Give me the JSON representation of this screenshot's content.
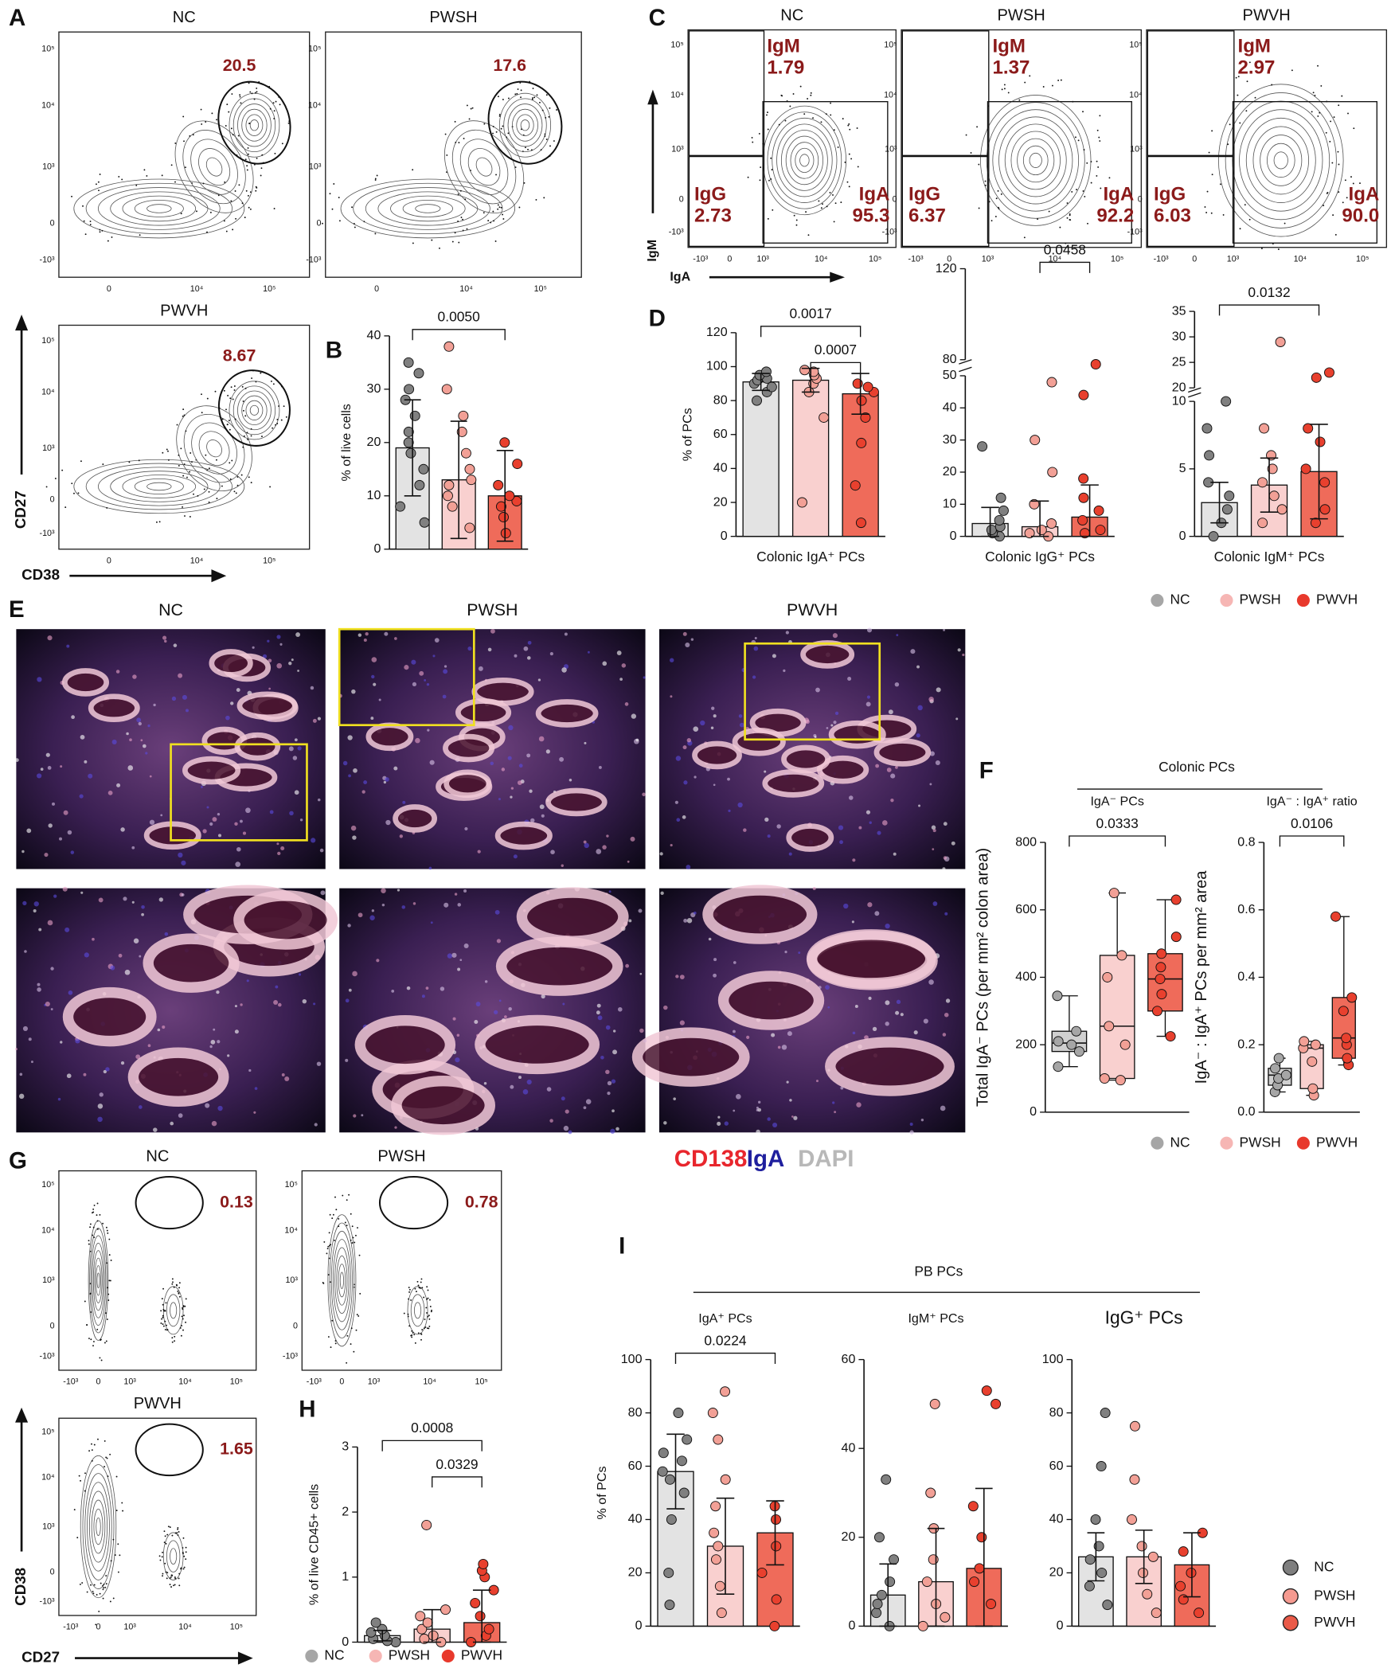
{
  "panel_letters": [
    "A",
    "B",
    "C",
    "D",
    "E",
    "F",
    "G",
    "H",
    "I"
  ],
  "flow_A": {
    "axis_x": "CD38",
    "axis_y": "CD27",
    "ticks_x": [
      "0",
      "10⁴",
      "10⁵"
    ],
    "ticks_y": [
      "-10³",
      "0",
      "10³",
      "10⁴",
      "10⁵"
    ],
    "plots": [
      {
        "title": "NC",
        "gate": 20.5
      },
      {
        "title": "PWSH",
        "gate": 17.6
      },
      {
        "title": "PWVH",
        "gate": 8.67
      }
    ]
  },
  "flow_C": {
    "axis_x": "IgA",
    "axis_y": "IgM",
    "ticks_x": [
      "-10³",
      "0",
      "10³",
      "10⁴",
      "10⁵"
    ],
    "ticks_y": [
      "-10³",
      "0",
      "10³",
      "10⁴",
      "10⁵"
    ],
    "plots": [
      {
        "title": "NC",
        "gates": [
          {
            "name": "IgM",
            "value": 1.79
          },
          {
            "name": "IgG",
            "value": 2.73
          },
          {
            "name": "IgA",
            "value": 95.3
          }
        ]
      },
      {
        "title": "PWSH",
        "gates": [
          {
            "name": "IgM",
            "value": 1.37
          },
          {
            "name": "IgG",
            "value": 6.37
          },
          {
            "name": "IgA",
            "value": 92.2
          }
        ]
      },
      {
        "title": "PWVH",
        "gates": [
          {
            "name": "IgM",
            "value": 2.97
          },
          {
            "name": "IgG",
            "value": 6.03
          },
          {
            "name": "IgA",
            "value": {
              "value": 90,
              "label": "90.0"
            }
          }
        ]
      }
    ]
  },
  "flow_G": {
    "axis_x": "CD27",
    "axis_y": "CD38",
    "ticks_x": [
      "-10³",
      "0",
      "10³",
      "10⁴",
      "10⁵"
    ],
    "ticks_y": [
      "-10³",
      "0",
      "10³",
      "10⁴",
      "10⁵"
    ],
    "plots": [
      {
        "title": "NC",
        "gate": 0.13
      },
      {
        "title": "PWSH",
        "gate": 0.78
      },
      {
        "title": "PWVH",
        "gate": 1.65
      }
    ]
  },
  "images_E": {
    "titles": [
      "NC",
      "PWSH",
      "PWVH"
    ],
    "stains": [
      {
        "text": "CD138",
        "color": "#e8262d"
      },
      {
        "text": "IgA",
        "color": "#1f1f9e"
      },
      {
        "text": "DAPI",
        "color": "#b8b8b8"
      }
    ]
  },
  "group_titles": [
    "Colonic PCs",
    "PB PCs"
  ],
  "legends": [
    [
      {
        "name": "NC",
        "color": "#a6a6a6"
      },
      {
        "name": "PWSH",
        "color": "#f6b6b4"
      },
      {
        "name": "PWVH",
        "color": "#e8392c"
      }
    ],
    [
      {
        "name": "NC",
        "color": "#a6a6a6"
      },
      {
        "name": "PWSH",
        "color": "#f6b6b4"
      },
      {
        "name": "PWVH",
        "color": "#e8392c"
      }
    ],
    [
      {
        "name": "NC",
        "color": "#a6a6a6"
      },
      {
        "name": "PWSH",
        "color": "#f6b6b4"
      },
      {
        "name": "PWVH",
        "color": "#e8392c"
      }
    ],
    [
      {
        "name": "NC",
        "color": "#7f7f7f"
      },
      {
        "name": "PWSH",
        "color": "#f59a90"
      },
      {
        "name": "PWVH",
        "color": "#ea5a48"
      }
    ]
  ],
  "chart_data": [
    {
      "type": "bar",
      "ylabel": "% of live cells",
      "ylim": [
        0,
        40
      ],
      "yticks": [
        0,
        10,
        20,
        30,
        40
      ],
      "series": [
        {
          "color": "#e3e3e3",
          "point_color": "#808080",
          "value": 19,
          "error": 9,
          "points": [
            5,
            8,
            12,
            15,
            18,
            20,
            22,
            25,
            28,
            30,
            33,
            35
          ]
        },
        {
          "color": "#f9d0cf",
          "point_color": "#f2a096",
          "value": 13,
          "error": 11,
          "points": [
            4,
            8,
            10,
            12,
            13,
            15,
            18,
            22,
            25,
            30,
            38
          ]
        },
        {
          "color": "#ef6b5a",
          "point_color": "#e8402e",
          "value": 10,
          "error": 8.5,
          "points": [
            3,
            6,
            8,
            9,
            10,
            12,
            16,
            20
          ]
        }
      ],
      "comparisons": [
        {
          "label": "0.0050",
          "between": [
            0,
            2
          ]
        }
      ]
    },
    {
      "type": "bar",
      "ylabel": "% of PCs",
      "xlabel": "Colonic IgA⁺ PCs",
      "ylim": [
        0,
        120
      ],
      "yticks": [
        0,
        20,
        40,
        60,
        80,
        100,
        120
      ],
      "series": [
        {
          "color": "#e3e3e3",
          "point_color": "#808080",
          "value": 91,
          "error": 5,
          "points": [
            80,
            85,
            88,
            90,
            92,
            93,
            95,
            97
          ]
        },
        {
          "color": "#f9d0cf",
          "point_color": "#f2a096",
          "value": 92,
          "error": 7,
          "points": [
            20,
            70,
            85,
            90,
            93,
            95,
            97,
            98
          ]
        },
        {
          "color": "#ef6b5a",
          "point_color": "#e8402e",
          "value": 84,
          "error": 12,
          "points": [
            8,
            30,
            55,
            70,
            80,
            85,
            88,
            90
          ]
        }
      ],
      "comparisons": [
        {
          "label": "0.0017",
          "between": [
            0,
            2
          ]
        },
        {
          "label": "0.0007",
          "between": [
            1,
            2
          ]
        }
      ]
    },
    {
      "type": "bar",
      "xlabel": "Colonic IgG⁺ PCs",
      "ylim": [
        0,
        120
      ],
      "ybreak": [
        50,
        80
      ],
      "yticks": [
        0,
        10,
        20,
        30,
        40,
        50,
        80,
        120
      ],
      "series": [
        {
          "color": "#e3e3e3",
          "point_color": "#808080",
          "value": 4,
          "error": 5,
          "points": [
            0,
            1,
            2,
            3,
            5,
            8,
            12,
            28
          ]
        },
        {
          "color": "#f9d0cf",
          "point_color": "#f2a096",
          "value": 3,
          "error": 8,
          "points": [
            0,
            1,
            2,
            4,
            10,
            20,
            30,
            48
          ]
        },
        {
          "color": "#ef6b5a",
          "point_color": "#e8402e",
          "value": 6,
          "error": 10,
          "points": [
            1,
            2,
            5,
            8,
            12,
            18,
            44,
            78
          ]
        }
      ],
      "comparisons": [
        {
          "label": "0.0458",
          "between": [
            1,
            2
          ]
        }
      ]
    },
    {
      "type": "bar",
      "xlabel": "Colonic IgM⁺ PCs",
      "ylim": [
        0,
        35
      ],
      "ybreak": [
        10,
        20
      ],
      "yticks": [
        0,
        5,
        10,
        20,
        25,
        30,
        35
      ],
      "series": [
        {
          "color": "#e3e3e3",
          "point_color": "#808080",
          "value": 2.5,
          "error": 1.5,
          "points": [
            0,
            1,
            2,
            3,
            4,
            6,
            8,
            10
          ]
        },
        {
          "color": "#f9d0cf",
          "point_color": "#f2a096",
          "value": 3.8,
          "error": 2,
          "points": [
            1,
            2,
            3,
            4,
            5,
            6,
            8,
            29
          ]
        },
        {
          "color": "#ef6b5a",
          "point_color": "#e8402e",
          "value": 4.8,
          "error": 3.5,
          "points": [
            1,
            2,
            4,
            5,
            7,
            8,
            22,
            23
          ]
        }
      ],
      "comparisons": [
        {
          "label": "0.0132",
          "between": [
            0,
            2
          ]
        }
      ]
    },
    {
      "type": "box",
      "title": "IgA⁻ PCs",
      "ylabel": "Total IgA⁻ PCs (per mm² colon area)",
      "ylim": [
        0,
        800
      ],
      "yticks": [
        0,
        200,
        400,
        600,
        800
      ],
      "series": [
        {
          "color": "#d0d0d0",
          "point_color": "#a6a6a6",
          "min": 135,
          "q1": 180,
          "median": 205,
          "q3": 240,
          "max": 345,
          "points": [
            135,
            180,
            200,
            210,
            240,
            345
          ]
        },
        {
          "color": "#f9d0cf",
          "point_color": "#f2a096",
          "min": 95,
          "q1": 100,
          "median": 255,
          "q3": 465,
          "max": 650,
          "points": [
            95,
            100,
            200,
            255,
            400,
            465,
            650
          ]
        },
        {
          "color": "#ef6b5a",
          "point_color": "#e8402e",
          "min": 225,
          "q1": 300,
          "median": 395,
          "q3": 470,
          "max": 630,
          "points": [
            225,
            300,
            350,
            395,
            430,
            470,
            520,
            630
          ]
        }
      ],
      "comparisons": [
        {
          "label": "0.0333",
          "between": [
            0,
            2
          ]
        }
      ]
    },
    {
      "type": "box",
      "title": "IgA⁻ : IgA⁺ ratio",
      "ylabel": "IgA⁻ : IgA⁺ PCs per mm² area",
      "ylim": [
        0,
        0.8
      ],
      "yticks": [
        {
          "value": 0,
          "label": "0.0"
        },
        {
          "value": 0.2,
          "label": "0.2"
        },
        {
          "value": 0.4,
          "label": "0.4"
        },
        {
          "value": 0.6,
          "label": "0.6"
        },
        {
          "value": 0.8,
          "label": "0.8"
        }
      ],
      "series": [
        {
          "color": "#d0d0d0",
          "point_color": "#a6a6a6",
          "min": 0.06,
          "q1": 0.08,
          "median": 0.11,
          "q3": 0.13,
          "max": 0.16,
          "points": [
            0.06,
            0.08,
            0.1,
            0.11,
            0.13,
            0.16
          ]
        },
        {
          "color": "#f9d0cf",
          "point_color": "#f2a096",
          "min": 0.05,
          "q1": 0.07,
          "median": 0.19,
          "q3": 0.2,
          "max": 0.21,
          "points": [
            0.05,
            0.07,
            0.15,
            0.19,
            0.2,
            0.21
          ]
        },
        {
          "color": "#ef6b5a",
          "point_color": "#e8402e",
          "min": 0.14,
          "q1": 0.16,
          "median": 0.22,
          "q3": 0.34,
          "max": 0.58,
          "points": [
            0.14,
            0.16,
            0.2,
            0.22,
            0.3,
            0.34,
            0.58
          ]
        }
      ],
      "comparisons": [
        {
          "label": "0.0106",
          "between": [
            0,
            2
          ]
        }
      ]
    },
    {
      "type": "bar",
      "ylabel": "% of live CD45+ cells",
      "ylim": [
        0,
        3
      ],
      "yticks": [
        0,
        1,
        2,
        3
      ],
      "series": [
        {
          "color": "#e3e3e3",
          "point_color": "#808080",
          "value": 0.1,
          "error": 0.08,
          "points": [
            0,
            0.02,
            0.05,
            0.1,
            0.15,
            0.2,
            0.3
          ]
        },
        {
          "color": "#f9d0cf",
          "point_color": "#f2a096",
          "value": 0.2,
          "error": 0.3,
          "points": [
            0,
            0.05,
            0.1,
            0.2,
            0.3,
            0.4,
            0.5,
            1.8
          ]
        },
        {
          "color": "#ef6b5a",
          "point_color": "#e8402e",
          "value": 0.3,
          "error": 0.5,
          "points": [
            0,
            0.1,
            0.2,
            0.4,
            0.6,
            0.8,
            1.0,
            1.1,
            1.2
          ]
        }
      ],
      "comparisons": [
        {
          "label": "0.0008",
          "between": [
            0,
            2
          ]
        },
        {
          "label": "0.0329",
          "between": [
            1,
            2
          ]
        }
      ]
    },
    {
      "type": "bar",
      "title": "IgA⁺ PCs",
      "ylabel": "% of PCs",
      "ylim": [
        0,
        100
      ],
      "yticks": [
        0,
        20,
        40,
        60,
        80,
        100
      ],
      "series": [
        {
          "color": "#e3e3e3",
          "point_color": "#808080",
          "value": 58,
          "error": 14,
          "points": [
            8,
            20,
            40,
            50,
            55,
            58,
            62,
            65,
            70,
            80
          ]
        },
        {
          "color": "#f9d0cf",
          "point_color": "#f2a096",
          "value": 30,
          "error": 18,
          "points": [
            5,
            15,
            25,
            30,
            35,
            45,
            55,
            70,
            80,
            88
          ]
        },
        {
          "color": "#ef6b5a",
          "point_color": "#e8402e",
          "value": 35,
          "error": 12,
          "points": [
            0,
            10,
            20,
            30,
            40,
            45
          ]
        }
      ],
      "comparisons": [
        {
          "label": "0.0224",
          "between": [
            0,
            2
          ]
        }
      ]
    },
    {
      "type": "bar",
      "title": "IgM⁺ PCs",
      "ylim": [
        0,
        60
      ],
      "yticks": [
        0,
        20,
        40,
        60
      ],
      "series": [
        {
          "color": "#e3e3e3",
          "point_color": "#808080",
          "value": 7,
          "error": 7,
          "points": [
            0,
            3,
            5,
            7,
            10,
            15,
            20,
            33
          ]
        },
        {
          "color": "#f9d0cf",
          "point_color": "#f2a096",
          "value": 10,
          "error": 12,
          "points": [
            0,
            2,
            5,
            10,
            15,
            22,
            30,
            50
          ]
        },
        {
          "color": "#ef6b5a",
          "point_color": "#e8402e",
          "value": 13,
          "error": 18,
          "points": [
            5,
            10,
            13,
            20,
            27,
            50,
            53
          ]
        }
      ]
    },
    {
      "type": "bar",
      "title": "IgG⁺ PCs",
      "ylim": [
        0,
        100
      ],
      "yticks": [
        0,
        20,
        40,
        60,
        80,
        100
      ],
      "series": [
        {
          "color": "#e3e3e3",
          "point_color": "#808080",
          "value": 26,
          "error": 9,
          "points": [
            8,
            15,
            20,
            25,
            30,
            40,
            60,
            80
          ]
        },
        {
          "color": "#f9d0cf",
          "point_color": "#f2a096",
          "value": 26,
          "error": 10,
          "points": [
            5,
            12,
            20,
            26,
            30,
            40,
            55,
            75
          ]
        },
        {
          "color": "#ef6b5a",
          "point_color": "#e8402e",
          "value": 23,
          "error": 12,
          "points": [
            5,
            10,
            15,
            20,
            28,
            35
          ]
        }
      ]
    }
  ]
}
